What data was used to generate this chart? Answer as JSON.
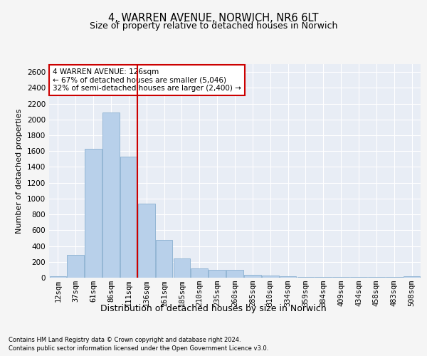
{
  "title_line1": "4, WARREN AVENUE, NORWICH, NR6 6LT",
  "title_line2": "Size of property relative to detached houses in Norwich",
  "xlabel": "Distribution of detached houses by size in Norwich",
  "ylabel": "Number of detached properties",
  "categories": [
    "12sqm",
    "37sqm",
    "61sqm",
    "86sqm",
    "111sqm",
    "136sqm",
    "161sqm",
    "185sqm",
    "210sqm",
    "235sqm",
    "260sqm",
    "285sqm",
    "310sqm",
    "334sqm",
    "359sqm",
    "384sqm",
    "409sqm",
    "434sqm",
    "458sqm",
    "483sqm",
    "508sqm"
  ],
  "values": [
    15,
    290,
    1630,
    2090,
    1530,
    940,
    480,
    240,
    115,
    95,
    95,
    40,
    25,
    20,
    10,
    10,
    5,
    5,
    5,
    5,
    15
  ],
  "bar_color": "#b8d0ea",
  "bar_edge_color": "#8ab0d0",
  "vline_color": "#cc0000",
  "annotation_text": "4 WARREN AVENUE: 126sqm\n← 67% of detached houses are smaller (5,046)\n32% of semi-detached houses are larger (2,400) →",
  "ylim": [
    0,
    2700
  ],
  "yticks": [
    0,
    200,
    400,
    600,
    800,
    1000,
    1200,
    1400,
    1600,
    1800,
    2000,
    2200,
    2400,
    2600
  ],
  "footnote1": "Contains HM Land Registry data © Crown copyright and database right 2024.",
  "footnote2": "Contains public sector information licensed under the Open Government Licence v3.0.",
  "bg_color": "#f5f5f5",
  "plot_bg_color": "#e8edf5",
  "grid_color": "#ffffff",
  "title1_fontsize": 10.5,
  "title2_fontsize": 9.0,
  "ylabel_fontsize": 8.0,
  "xlabel_fontsize": 9.0,
  "tick_fontsize": 7.5,
  "ann_fontsize": 7.5,
  "footnote_fontsize": 6.0
}
